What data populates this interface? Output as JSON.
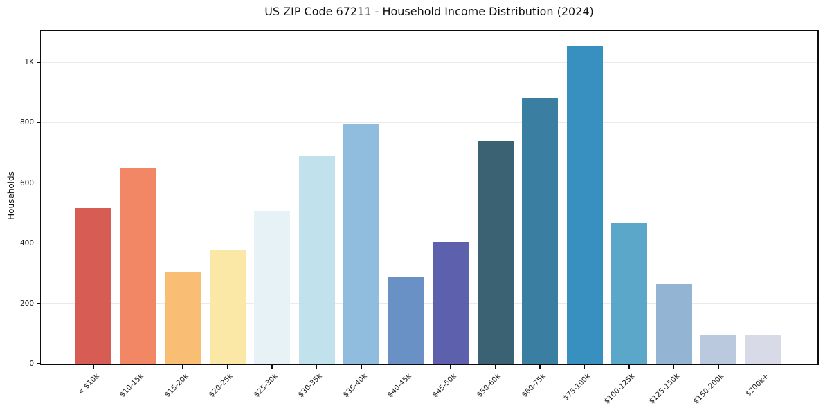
{
  "chart_data": {
    "type": "bar",
    "title": "US ZIP Code 67211 - Household Income Distribution (2024)",
    "xlabel": "",
    "ylabel": "Households",
    "categories": [
      "< $10k",
      "$10-15k",
      "$15-20k",
      "$20-25k",
      "$25-30k",
      "$30-35k",
      "$35-40k",
      "$40-45k",
      "$45-50k",
      "$50-60k",
      "$60-75k",
      "$75-100k",
      "$100-125k",
      "$125-150k",
      "$150-200k",
      "$200k+"
    ],
    "values": [
      517,
      649,
      302,
      378,
      507,
      690,
      794,
      287,
      403,
      739,
      881,
      1053,
      469,
      267,
      97,
      95
    ],
    "bar_colors": [
      "#d65c54",
      "#f28766",
      "#fabd74",
      "#fce8a6",
      "#e7f2f7",
      "#c1e1ec",
      "#90bcdd",
      "#6991c5",
      "#5c60ad",
      "#3a6272",
      "#3a7ea2",
      "#3890c0",
      "#5ba7ca",
      "#93b5d3",
      "#bac9dd",
      "#d8dae7"
    ],
    "ylim": [
      0,
      1104
    ],
    "yticks": {
      "values": [
        0,
        200,
        400,
        600,
        800,
        1000
      ],
      "labels": [
        "0",
        "200",
        "400",
        "600",
        "800",
        "1K"
      ]
    },
    "grid": "horizontal",
    "legend": "none",
    "background_color": "#ffffff",
    "spine_color": "#0d0d0d",
    "gridline_color": "#eaeaea"
  }
}
